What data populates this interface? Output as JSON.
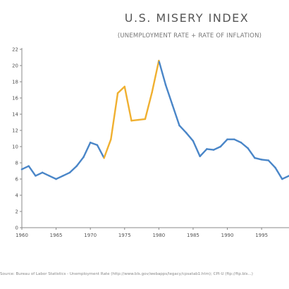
{
  "title": "U.S. MISERY INDEX",
  "subtitle": "(UNEMPLOYMENT RATE + RATE OF INFLATION)",
  "source": "Source: Bureau of Labor Statistics - Unemployment Rate (http://www.bls.gov/webapps/legacy/cpsatab1.htm); CPI-U (ftp://ftp.bls...)",
  "colors": {
    "line_default": "#4a86c8",
    "line_highlight": "#f0b030",
    "axis": "#888888"
  },
  "chart_data": {
    "type": "line",
    "title": "U.S. MISERY INDEX",
    "subtitle": "(UNEMPLOYMENT RATE + RATE OF INFLATION)",
    "xlabel": "",
    "ylabel": "",
    "xlim": [
      1960,
      1999
    ],
    "ylim": [
      0,
      22
    ],
    "y_ticks": [
      0,
      2,
      4,
      6,
      8,
      10,
      12,
      14,
      16,
      18,
      20,
      22
    ],
    "x_ticks": [
      1960,
      1965,
      1970,
      1975,
      1980,
      1985,
      1990,
      1995
    ],
    "grid": false,
    "legend": "none",
    "x": [
      1960,
      1961,
      1962,
      1963,
      1964,
      1965,
      1966,
      1967,
      1968,
      1969,
      1970,
      1971,
      1972,
      1973,
      1974,
      1975,
      1976,
      1977,
      1978,
      1979,
      1980,
      1981,
      1982,
      1983,
      1984,
      1985,
      1986,
      1987,
      1988,
      1989,
      1990,
      1991,
      1992,
      1993,
      1994,
      1995,
      1996,
      1997,
      1998,
      1999
    ],
    "y": [
      7.2,
      7.6,
      6.4,
      6.8,
      6.4,
      6.0,
      6.4,
      6.8,
      7.6,
      8.7,
      10.5,
      10.2,
      8.6,
      10.9,
      16.6,
      17.4,
      13.2,
      13.3,
      13.4,
      16.7,
      20.6,
      17.6,
      15.1,
      12.6,
      11.7,
      10.7,
      8.8,
      9.7,
      9.6,
      10.0,
      10.9,
      10.9,
      10.5,
      9.8,
      8.6,
      8.4,
      8.3,
      7.4,
      6.0,
      6.4
    ],
    "highlight_range": [
      1972,
      1980
    ]
  }
}
